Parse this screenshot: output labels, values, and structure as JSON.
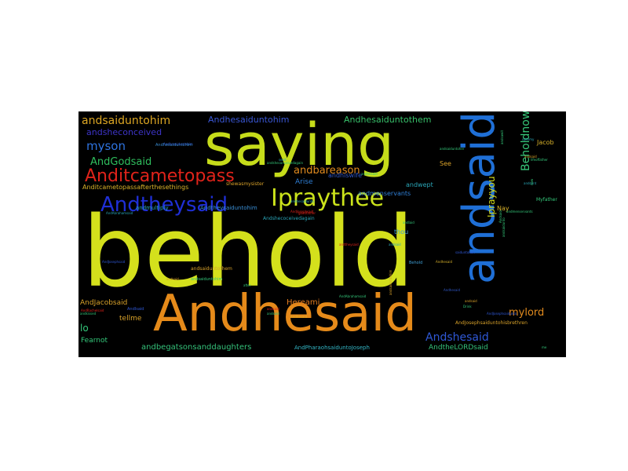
{
  "wordcloud": {
    "background": "#000000",
    "words": [
      {
        "text": "behold",
        "color": "#d4e01c"
      },
      {
        "text": "saying",
        "color": "#c6dc1a"
      },
      {
        "text": "Andhesaid",
        "color": "#e58a1a"
      },
      {
        "text": "andsaid",
        "color": "#1f6fd6"
      },
      {
        "text": "Ipraythee",
        "color": "#cbe31b"
      },
      {
        "text": "Andtheysaid",
        "color": "#1f2fd6"
      },
      {
        "text": "Anditcametopass",
        "color": "#e0231a"
      },
      {
        "text": "andsaiduntohim",
        "color": "#dca623"
      },
      {
        "text": "myson",
        "color": "#2e73df"
      },
      {
        "text": "AndGodsaid",
        "color": "#2fbf5e"
      },
      {
        "text": "Andhesaiduntohim",
        "color": "#3a57d6"
      },
      {
        "text": "Andhesaiduntothem",
        "color": "#38c06a"
      },
      {
        "text": "andbareason",
        "color": "#e08a1e"
      },
      {
        "text": "Beholdnow",
        "color": "#38c87a"
      },
      {
        "text": "Iprayyou",
        "color": "#cfd81c"
      },
      {
        "text": "Andshesaid",
        "color": "#2f58d6"
      },
      {
        "text": "mylord",
        "color": "#e08a1e"
      },
      {
        "text": "andsheconceived",
        "color": "#3d34c8"
      },
      {
        "text": "andbegatsonsanddaughters",
        "color": "#34c27a"
      },
      {
        "text": "AndJacobsaid",
        "color": "#d9a22a"
      },
      {
        "text": "Hereami",
        "color": "#e07a1e"
      },
      {
        "text": "lo",
        "color": "#34c87a"
      },
      {
        "text": "tellme",
        "color": "#d9a22a"
      },
      {
        "text": "Fearnot",
        "color": "#34c87a"
      },
      {
        "text": "AndtheLORDsaid",
        "color": "#34c27a"
      },
      {
        "text": "AndPharaohsaiduntoJoseph",
        "color": "#34b8c8"
      },
      {
        "text": "Arise",
        "color": "#2f7fd6"
      },
      {
        "text": "andhiswife",
        "color": "#3058c8"
      },
      {
        "text": "andwept",
        "color": "#2aa6b8"
      },
      {
        "text": "andmenservants",
        "color": "#2f7fd6"
      },
      {
        "text": "thou",
        "color": "#3f9fd6"
      },
      {
        "text": "Nay",
        "color": "#d9b22a"
      },
      {
        "text": "See",
        "color": "#d9a22a"
      },
      {
        "text": "Jacob",
        "color": "#d9b22a"
      },
      {
        "text": "Myfather",
        "color": "#34c87a"
      },
      {
        "text": "Anditcametopassafterthesethings",
        "color": "#d9b22a"
      },
      {
        "text": "andmultiply",
        "color": "#2aa6b8"
      },
      {
        "text": "Andtheysaiduntohim",
        "color": "#3a8fd6"
      },
      {
        "text": "Andshecoceivedagain",
        "color": "#2aa6b8"
      },
      {
        "text": "andsaiduntothem",
        "color": "#d9a22a"
      },
      {
        "text": "AndJosephsaiduntohisbrethren",
        "color": "#d9a22a"
      },
      {
        "text": "Behold",
        "color": "#3f9fd6"
      },
      {
        "text": "shewasmysister",
        "color": "#d9a22a"
      },
      {
        "text": "Andhesaiduntohim",
        "color": "#3a8fd6"
      },
      {
        "text": "andsaiduntohim",
        "color": "#34c87a"
      },
      {
        "text": "andhesaidunto",
        "color": "#2aa6b8"
      },
      {
        "text": "AndJosephsaid",
        "color": "#e0231a"
      },
      {
        "text": "andlaid",
        "color": "#34c87a"
      },
      {
        "text": "andsaidunto",
        "color": "#34c87a"
      },
      {
        "text": "andsaiduntoher",
        "color": "#34c87a"
      },
      {
        "text": "andsheconceivedagain",
        "color": "#34c87a"
      },
      {
        "text": "andsaid",
        "color": "#d9a22a"
      },
      {
        "text": "andsawit",
        "color": "#34c87a"
      },
      {
        "text": "andsent",
        "color": "#2aa6b8"
      },
      {
        "text": "Drink",
        "color": "#34c87a"
      },
      {
        "text": "now",
        "color": "#34c87a"
      },
      {
        "text": "AndIsaid",
        "color": "#2f58d6"
      },
      {
        "text": "andkissed",
        "color": "#34c87a"
      },
      {
        "text": "Andhesaiduntohim",
        "color": "#3058c8"
      },
      {
        "text": "andtheysaid",
        "color": "#e0231a"
      },
      {
        "text": "andsaiduntohim",
        "color": "#d9a22a"
      },
      {
        "text": "AndAbrahamsaid",
        "color": "#2aa6b8"
      },
      {
        "text": "andhesaid",
        "color": "#34c87a"
      },
      {
        "text": "AndAbrahamsaid",
        "color": "#34c87a"
      },
      {
        "text": "Andhesaid",
        "color": "#3058c8"
      },
      {
        "text": "AndRachelsaid",
        "color": "#e0231a"
      },
      {
        "text": "andsaid",
        "color": "#d9a22a"
      },
      {
        "text": "goodfather",
        "color": "#e0231a"
      },
      {
        "text": "AndJosephsaid",
        "color": "#2f58d6"
      },
      {
        "text": "Andhesaid",
        "color": "#d9b22a"
      },
      {
        "text": "AndJosephsaidunto",
        "color": "#2f58d6"
      },
      {
        "text": "seeit",
        "color": "#2aa6b8"
      },
      {
        "text": "Andsaid",
        "color": "#34c87a"
      },
      {
        "text": "uptomy",
        "color": "#2aa6b8"
      },
      {
        "text": "me",
        "color": "#34c87a"
      },
      {
        "text": "lifeoffather",
        "color": "#34c87a"
      },
      {
        "text": "saiduntohim",
        "color": "#2f58d6"
      },
      {
        "text": "andsaid",
        "color": "#34c87a"
      },
      {
        "text": "Andhesaid",
        "color": "#d9b22a"
      },
      {
        "text": "andsaid",
        "color": "#d9a22a"
      },
      {
        "text": "andmenservants",
        "color": "#34c87a"
      },
      {
        "text": "andsaid",
        "color": "#2aa6b8"
      },
      {
        "text": "andsaid",
        "color": "#e0231a"
      },
      {
        "text": "after",
        "color": "#34c87a"
      }
    ]
  }
}
